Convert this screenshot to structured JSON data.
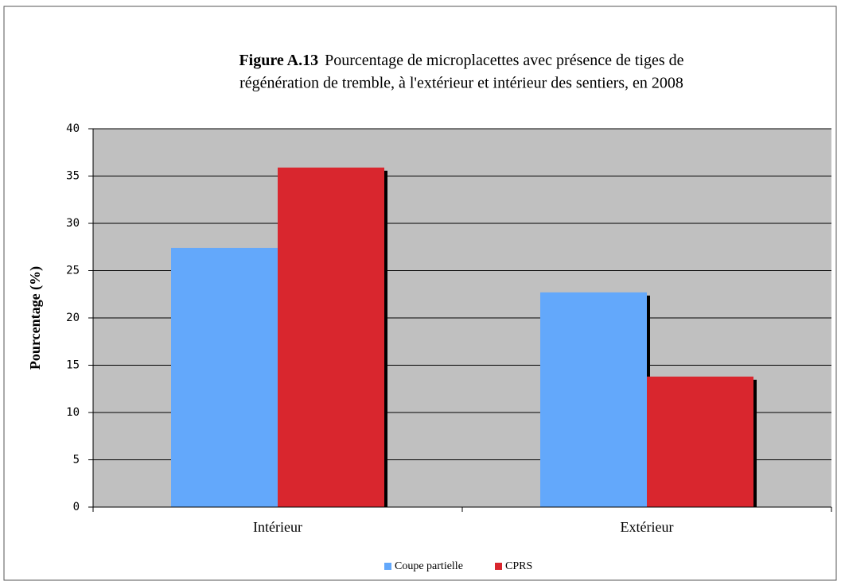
{
  "chart_data": {
    "type": "bar",
    "figure_label": "Figure A.13",
    "title_lines": [
      "Pourcentage de microplacettes avec présence de tiges de",
      "régénération de tremble, à l'extérieur et intérieur des sentiers, en 2008"
    ],
    "y_label": "Pourcentage (%)",
    "categories": [
      "Intérieur",
      "Extérieur"
    ],
    "series": [
      {
        "name": "Coupe partielle",
        "color": "#63a8fb",
        "values": [
          27.4,
          22.7
        ]
      },
      {
        "name": "CPRS",
        "color": "#d9262e",
        "values": [
          35.9,
          13.8
        ]
      }
    ],
    "ylim": [
      0,
      40
    ],
    "yticks": [
      0,
      5,
      10,
      15,
      20,
      25,
      30,
      35,
      40
    ],
    "grid": true,
    "legend": "bottom"
  }
}
